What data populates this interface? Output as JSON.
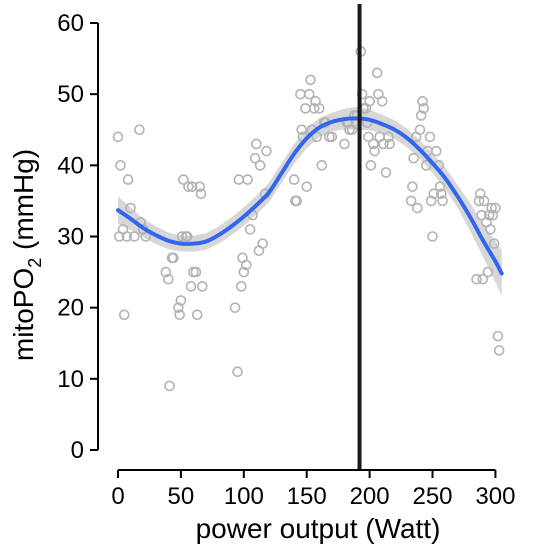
{
  "chart_data": {
    "type": "scatter",
    "xlabel": "power output (Watt)",
    "ylabel": {
      "main": "mitoPO",
      "sub": "2",
      "unit": " (mmHg)"
    },
    "xlim": [
      0,
      310
    ],
    "ylim": [
      0,
      60
    ],
    "xticks": [
      0,
      50,
      100,
      150,
      200,
      250,
      300
    ],
    "yticks": [
      0,
      10,
      20,
      30,
      40,
      50,
      60
    ],
    "x_tick_labels": [
      "0",
      "50",
      "100",
      "150",
      "200",
      "250",
      "300"
    ],
    "y_tick_labels": [
      "0",
      "10",
      "20",
      "30",
      "40",
      "50",
      "60"
    ],
    "vertical_line": {
      "x": 192,
      "color": "#1a1a1a"
    },
    "colors": {
      "points": "#b3b3b3",
      "smooth": "#3366ee",
      "band": "#d0d0d0"
    },
    "points": [
      [
        0,
        44
      ],
      [
        1,
        30
      ],
      [
        2,
        40
      ],
      [
        4,
        31
      ],
      [
        5,
        19
      ],
      [
        7,
        30
      ],
      [
        8,
        38
      ],
      [
        10,
        34
      ],
      [
        13,
        30
      ],
      [
        17,
        45
      ],
      [
        18,
        32
      ],
      [
        20,
        31
      ],
      [
        22,
        30
      ],
      [
        38,
        25
      ],
      [
        40,
        24
      ],
      [
        41,
        9
      ],
      [
        43,
        27
      ],
      [
        44,
        27
      ],
      [
        48,
        20
      ],
      [
        49,
        19
      ],
      [
        50,
        21
      ],
      [
        51,
        30
      ],
      [
        52,
        38
      ],
      [
        54,
        30
      ],
      [
        55,
        30
      ],
      [
        56,
        37
      ],
      [
        58,
        23
      ],
      [
        59,
        37
      ],
      [
        60,
        25
      ],
      [
        62,
        25
      ],
      [
        63,
        19
      ],
      [
        65,
        37
      ],
      [
        66,
        36
      ],
      [
        67,
        23
      ],
      [
        93,
        20
      ],
      [
        95,
        11
      ],
      [
        96,
        38
      ],
      [
        98,
        23
      ],
      [
        99,
        27
      ],
      [
        100,
        25
      ],
      [
        102,
        26
      ],
      [
        103,
        38
      ],
      [
        105,
        31
      ],
      [
        107,
        33
      ],
      [
        109,
        41
      ],
      [
        110,
        43
      ],
      [
        112,
        28
      ],
      [
        113,
        40
      ],
      [
        115,
        29
      ],
      [
        117,
        36
      ],
      [
        118,
        42
      ],
      [
        140,
        38
      ],
      [
        141,
        35
      ],
      [
        142,
        35
      ],
      [
        145,
        50
      ],
      [
        146,
        45
      ],
      [
        147,
        44
      ],
      [
        149,
        48
      ],
      [
        150,
        37
      ],
      [
        152,
        50
      ],
      [
        153,
        52
      ],
      [
        154,
        45
      ],
      [
        156,
        48
      ],
      [
        157,
        49
      ],
      [
        158,
        44
      ],
      [
        160,
        48
      ],
      [
        162,
        40
      ],
      [
        164,
        46
      ],
      [
        165,
        46
      ],
      [
        168,
        44
      ],
      [
        170,
        44
      ],
      [
        180,
        43
      ],
      [
        182,
        46
      ],
      [
        183,
        46
      ],
      [
        184,
        45
      ],
      [
        186,
        45
      ],
      [
        188,
        47
      ],
      [
        190,
        47
      ],
      [
        193,
        56
      ],
      [
        194,
        50
      ],
      [
        195,
        48
      ],
      [
        197,
        48
      ],
      [
        198,
        46
      ],
      [
        199,
        44
      ],
      [
        200,
        49
      ],
      [
        201,
        40
      ],
      [
        203,
        43
      ],
      [
        204,
        42
      ],
      [
        206,
        53
      ],
      [
        207,
        50
      ],
      [
        208,
        44
      ],
      [
        210,
        49
      ],
      [
        211,
        43
      ],
      [
        213,
        39
      ],
      [
        215,
        44
      ],
      [
        216,
        43
      ],
      [
        233,
        35
      ],
      [
        234,
        37
      ],
      [
        235,
        41
      ],
      [
        237,
        44
      ],
      [
        238,
        34
      ],
      [
        240,
        45
      ],
      [
        241,
        47
      ],
      [
        242,
        49
      ],
      [
        243,
        48
      ],
      [
        245,
        40
      ],
      [
        246,
        42
      ],
      [
        248,
        44
      ],
      [
        249,
        35
      ],
      [
        250,
        30
      ],
      [
        251,
        36
      ],
      [
        253,
        42
      ],
      [
        255,
        40
      ],
      [
        256,
        37
      ],
      [
        257,
        36
      ],
      [
        258,
        35
      ],
      [
        285,
        24
      ],
      [
        287,
        35
      ],
      [
        288,
        36
      ],
      [
        289,
        33
      ],
      [
        290,
        24
      ],
      [
        291,
        35
      ],
      [
        293,
        32
      ],
      [
        294,
        25
      ],
      [
        295,
        33
      ],
      [
        296,
        31
      ],
      [
        297,
        34
      ],
      [
        298,
        33
      ],
      [
        299,
        29
      ],
      [
        300,
        34
      ],
      [
        302,
        16
      ],
      [
        303,
        14
      ]
    ],
    "smooth": [
      [
        0,
        33.7
      ],
      [
        10,
        32.5
      ],
      [
        20,
        31.2
      ],
      [
        30,
        30.2
      ],
      [
        40,
        29.4
      ],
      [
        50,
        29.0
      ],
      [
        60,
        29.0
      ],
      [
        70,
        29.3
      ],
      [
        80,
        30.2
      ],
      [
        90,
        31.4
      ],
      [
        100,
        32.8
      ],
      [
        110,
        34.4
      ],
      [
        120,
        36.2
      ],
      [
        130,
        38.9
      ],
      [
        140,
        41.6
      ],
      [
        150,
        43.8
      ],
      [
        160,
        45.3
      ],
      [
        170,
        46.1
      ],
      [
        180,
        46.5
      ],
      [
        190,
        46.6
      ],
      [
        200,
        46.4
      ],
      [
        210,
        45.8
      ],
      [
        220,
        45.0
      ],
      [
        230,
        43.8
      ],
      [
        240,
        42.2
      ],
      [
        250,
        40.3
      ],
      [
        260,
        38.2
      ],
      [
        270,
        35.6
      ],
      [
        280,
        32.7
      ],
      [
        290,
        29.5
      ],
      [
        300,
        26.5
      ],
      [
        305,
        24.8
      ]
    ],
    "band_halfwidth": [
      [
        0,
        1.9
      ],
      [
        20,
        1.3
      ],
      [
        50,
        1.1
      ],
      [
        80,
        1.2
      ],
      [
        100,
        1.3
      ],
      [
        130,
        1.4
      ],
      [
        150,
        1.4
      ],
      [
        170,
        1.3
      ],
      [
        190,
        1.6
      ],
      [
        210,
        1.3
      ],
      [
        240,
        1.3
      ],
      [
        270,
        1.6
      ],
      [
        290,
        2.3
      ],
      [
        305,
        3.2
      ]
    ]
  }
}
